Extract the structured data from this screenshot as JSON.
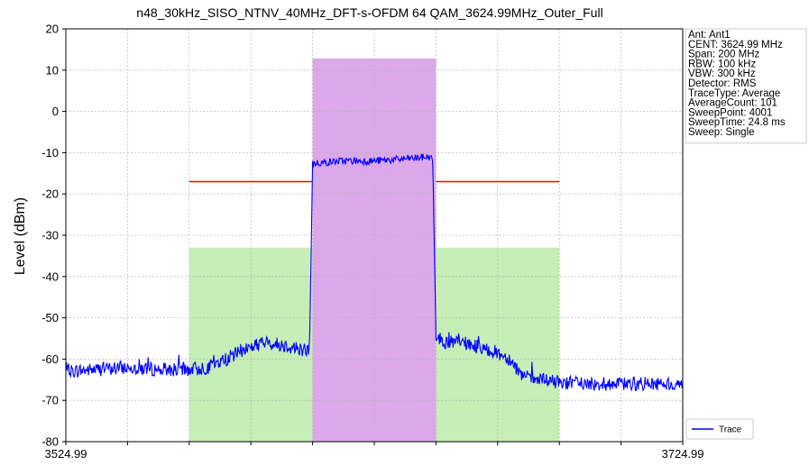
{
  "chart_data": {
    "type": "line",
    "title": "n48_30kHz_SISO_NTNV_40MHz_DFT-s-OFDM 64 QAM_3624.99MHz_Outer_Full",
    "xlabel": "",
    "ylabel": "Level (dBm)",
    "xlim": [
      3524.99,
      3724.99
    ],
    "ylim": [
      -80,
      20
    ],
    "x_tick_labels": [
      "3524.99",
      "3724.99"
    ],
    "y_ticks": [
      20,
      10,
      0,
      -10,
      -20,
      -30,
      -40,
      -50,
      -60,
      -70,
      -80
    ],
    "grid": true,
    "legend_position": "bottom-right",
    "info_box": [
      "Ant: Ant1",
      "CENT: 3624.99 MHz",
      "Span: 200 MHz",
      "RBW: 100 kHz",
      "VBW: 300 kHz",
      "Detector: RMS",
      "TraceType: Average",
      "AverageCount: 101",
      "SweepPoint: 4001",
      "SweepTime: 24.8 ms",
      "Sweep: Single"
    ],
    "regions": [
      {
        "name": "adjacent-lower",
        "x": [
          3564.99,
          3604.99
        ],
        "top": -33,
        "color": "#c6eeb6"
      },
      {
        "name": "channel",
        "x": [
          3604.99,
          3644.99
        ],
        "top": 12.8,
        "color": "#dba8ea"
      },
      {
        "name": "adjacent-upper",
        "x": [
          3644.99,
          3684.99
        ],
        "top": -33,
        "color": "#c6eeb6"
      }
    ],
    "limit_lines": [
      {
        "x": [
          3564.99,
          3604.99
        ],
        "y": -17
      },
      {
        "x": [
          3644.99,
          3684.99
        ],
        "y": -17
      }
    ],
    "series": [
      {
        "name": "Trace",
        "color": "#0000ff",
        "x": [
          3524.99,
          3534.99,
          3544.99,
          3554.99,
          3564.99,
          3570.99,
          3576.99,
          3582.99,
          3588.99,
          3594.99,
          3600.99,
          3603.99,
          3604.49,
          3604.99,
          3605.99,
          3606.99,
          3614.99,
          3624.99,
          3634.99,
          3642.99,
          3643.99,
          3644.49,
          3644.99,
          3645.99,
          3647.99,
          3652.99,
          3658.99,
          3664.99,
          3668.99,
          3672.99,
          3676.99,
          3684.99,
          3694.99,
          3704.99,
          3714.99,
          3724.99
        ],
        "y": [
          -63,
          -62.5,
          -62,
          -62.5,
          -62.5,
          -62,
          -60,
          -57.5,
          -56,
          -56.5,
          -57.5,
          -58,
          -35,
          -13,
          -12.5,
          -12.5,
          -12,
          -12,
          -11.5,
          -11,
          -12,
          -35,
          -54,
          -55,
          -56,
          -56,
          -57,
          -58.5,
          -60,
          -64,
          -65,
          -65.5,
          -66,
          -66,
          -66,
          -66
        ]
      }
    ]
  }
}
